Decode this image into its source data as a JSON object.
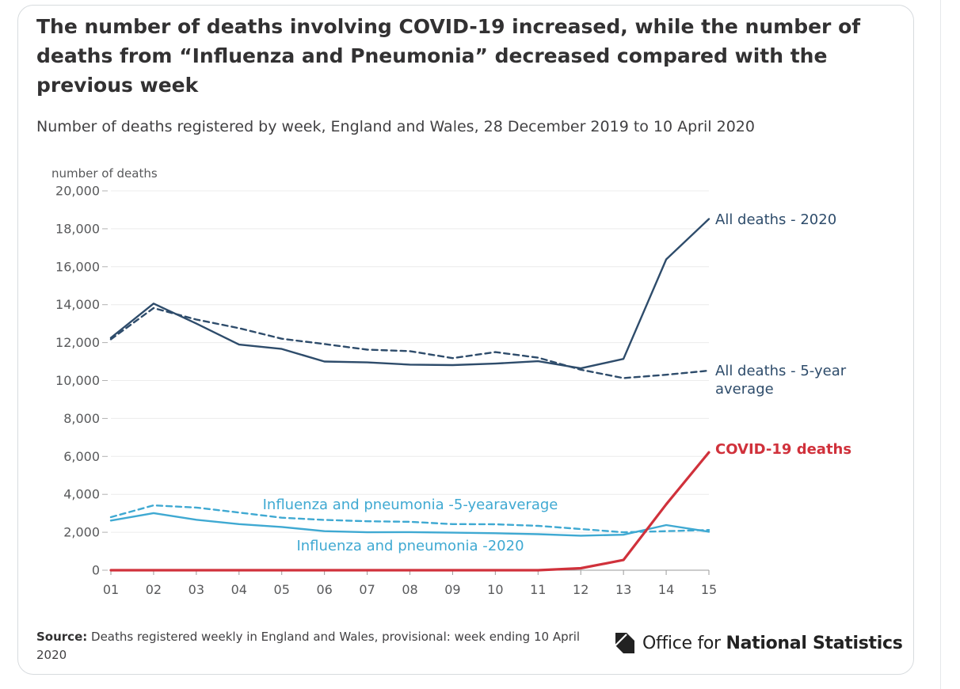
{
  "page": {
    "title": "The number of deaths involving COVID-19 increased, while the number of deaths from “Influenza and Pneumonia” decreased compared with the previous week",
    "subtitle": "Number of deaths registered by week, England and Wales, 28 December 2019 to 10 April 2020",
    "source_label": "Source:",
    "source_text": "Deaths registered weekly in England and Wales, provisional: week ending 10 April 2020",
    "logo_text_regular": "Office for",
    "logo_text_bold": "National Statistics",
    "logo_icon": "ons-logo-icon"
  },
  "chart_data": {
    "type": "line",
    "title": "The number of deaths involving COVID-19 increased, while the number of deaths from “Influenza and Pneumonia” decreased compared with the previous week",
    "ylabel": "number of deaths",
    "xlabel": "",
    "ylim": [
      0,
      20000
    ],
    "yticks": [
      0,
      2000,
      4000,
      6000,
      8000,
      10000,
      12000,
      14000,
      16000,
      18000,
      20000
    ],
    "ytick_labels": [
      "0",
      "2,000",
      "4,000",
      "6,000",
      "8,000",
      "10,000",
      "12,000",
      "14,000",
      "16,000",
      "18,000",
      "20,000"
    ],
    "grid": true,
    "categories": [
      "01",
      "02",
      "03",
      "04",
      "05",
      "06",
      "07",
      "08",
      "09",
      "10",
      "11",
      "12",
      "13",
      "14",
      "15"
    ],
    "series": [
      {
        "name": "All deaths - 2020",
        "label_lines": [
          "All deaths - 2020"
        ],
        "color": "#2e4c6b",
        "dashed": false,
        "bold_label": false,
        "values": [
          12254,
          14058,
          13002,
          11895,
          11664,
          11003,
          10955,
          10841,
          10816,
          10895,
          11019,
          10645,
          11141,
          16387,
          18516
        ]
      },
      {
        "name": "All deaths - 5-year average",
        "label_lines": [
          "All deaths - 5-year",
          "average"
        ],
        "color": "#2e4c6b",
        "dashed": true,
        "bold_label": false,
        "values": [
          12175,
          13822,
          13216,
          12760,
          12206,
          11925,
          11627,
          11548,
          11183,
          11498,
          11205,
          10573,
          10130,
          10305,
          10520
        ]
      },
      {
        "name": "COVID-19 deaths",
        "label_lines": [
          "COVID-19 deaths"
        ],
        "color": "#d0313b",
        "dashed": false,
        "bold_label": true,
        "values": [
          0,
          0,
          0,
          0,
          0,
          0,
          0,
          0,
          0,
          0,
          0,
          103,
          539,
          3475,
          6213
        ]
      },
      {
        "name": "Influenza and pneumonia -5-yearaverage",
        "label_lines": [
          "Influenza and pneumonia -5-yearaverage"
        ],
        "color": "#3fa9d2",
        "dashed": true,
        "bold_label": false,
        "values": [
          2797,
          3420,
          3303,
          3040,
          2770,
          2650,
          2580,
          2550,
          2430,
          2420,
          2340,
          2170,
          2000,
          2060,
          2120
        ]
      },
      {
        "name": "Influenza and pneumonia -2020",
        "label_lines": [
          "Influenza and pneumonia -2020"
        ],
        "color": "#3fa9d2",
        "dashed": false,
        "bold_label": false,
        "values": [
          2620,
          3010,
          2660,
          2430,
          2280,
          2060,
          2000,
          2010,
          1980,
          1950,
          1900,
          1820,
          1870,
          2380,
          2030
        ]
      }
    ]
  }
}
